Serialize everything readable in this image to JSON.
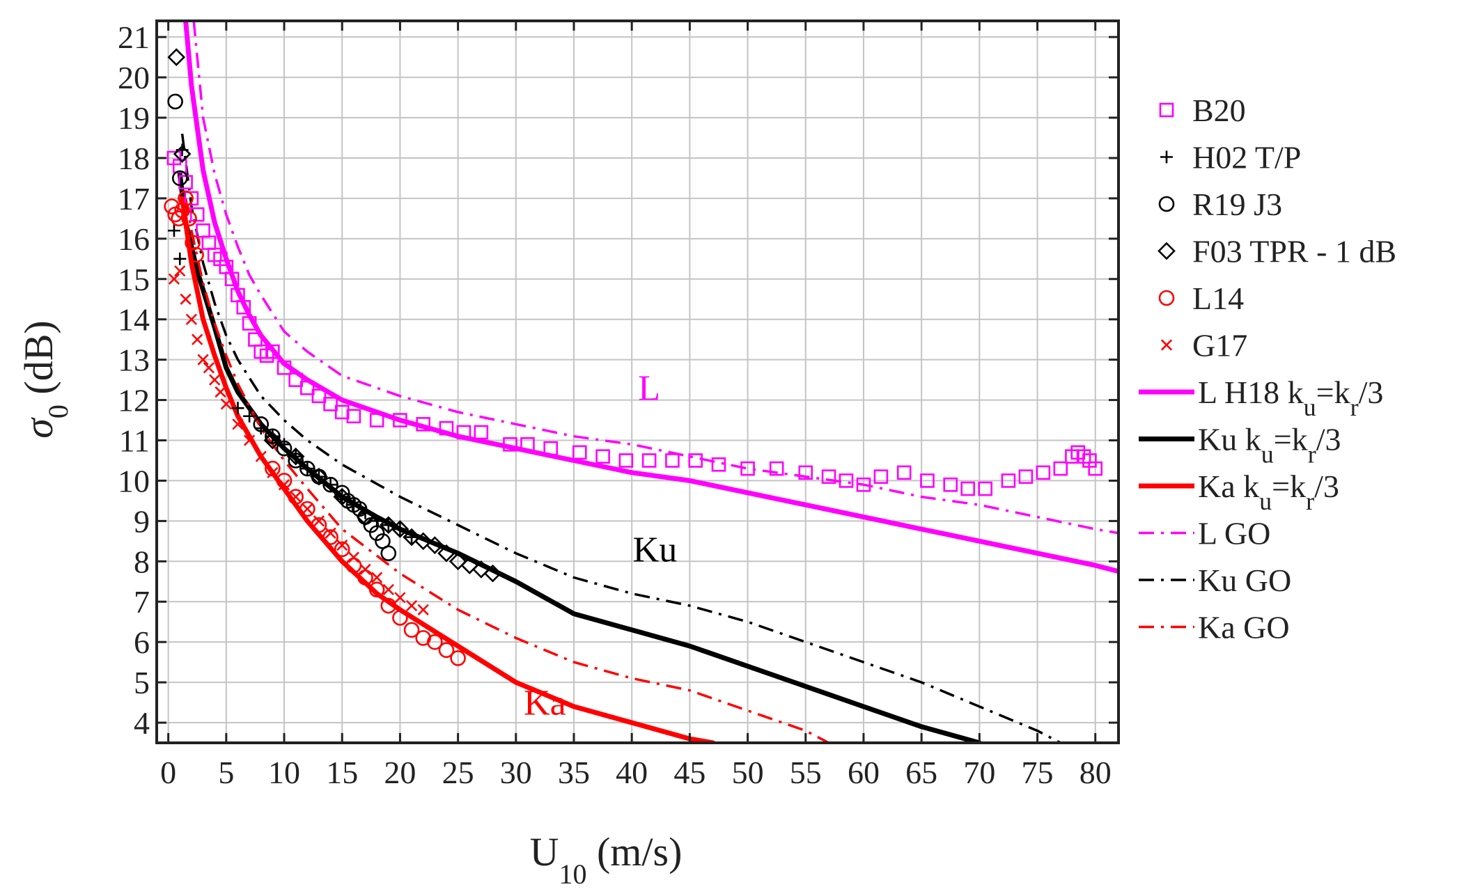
{
  "chart_data": {
    "type": "line",
    "title": "",
    "xlabel": {
      "main": "U",
      "sub": "10",
      "unit": " (m/s)"
    },
    "ylabel": {
      "main": "σ",
      "sub": "0",
      "unit": " (dB)"
    },
    "xlim": [
      -1,
      82
    ],
    "ylim": [
      3.5,
      21.4
    ],
    "xticks": [
      0,
      5,
      10,
      15,
      20,
      25,
      30,
      35,
      40,
      45,
      50,
      55,
      60,
      65,
      70,
      75,
      80
    ],
    "yticks": [
      4,
      5,
      6,
      7,
      8,
      9,
      10,
      11,
      12,
      13,
      14,
      15,
      16,
      17,
      18,
      19,
      20,
      21
    ],
    "grid": true,
    "legend_position": "right",
    "colors": {
      "magenta": "#ff00ff",
      "black": "#000000",
      "red": "#ff0000"
    },
    "annotations": [
      {
        "text": "L",
        "x": 41.5,
        "y": 12.0,
        "color": "#ff00ff"
      },
      {
        "text": "Ku",
        "x": 42.0,
        "y": 8.0,
        "color": "#000000"
      },
      {
        "text": "Ka",
        "x": 32.5,
        "y": 4.2,
        "color": "#ff0000"
      }
    ],
    "series": [
      {
        "id": "B20",
        "legend": {
          "main": "B20"
        },
        "kind": "marker",
        "marker": "square",
        "color": "#ff00ff",
        "x": [
          0.5,
          1.0,
          1.5,
          2.0,
          2.5,
          3.0,
          3.5,
          4.0,
          4.5,
          5.0,
          5.5,
          6.0,
          6.5,
          7.0,
          7.5,
          8.0,
          8.5,
          9.0,
          10.0,
          11.0,
          12.0,
          13.0,
          14.0,
          15.0,
          16.0,
          18.0,
          20.0,
          22.0,
          24.0,
          25.5,
          27.0,
          29.5,
          31.0,
          33.0,
          35.5,
          37.5,
          39.5,
          41.5,
          43.5,
          45.5,
          47.5,
          50.0,
          52.5,
          55.0,
          57.0,
          58.5,
          60.0,
          61.5,
          63.5,
          65.5,
          67.5,
          69.0,
          70.5,
          72.5,
          74.0,
          75.5,
          77.0,
          78.0,
          78.5,
          79.0,
          79.5,
          80.0
        ],
        "y": [
          18.0,
          17.8,
          17.4,
          17.0,
          16.6,
          16.2,
          15.9,
          15.6,
          15.5,
          15.3,
          15.0,
          14.6,
          14.3,
          13.9,
          13.5,
          13.2,
          13.1,
          13.2,
          12.8,
          12.5,
          12.3,
          12.1,
          11.9,
          11.7,
          11.6,
          11.5,
          11.5,
          11.4,
          11.3,
          11.2,
          11.2,
          10.9,
          10.9,
          10.8,
          10.7,
          10.6,
          10.5,
          10.5,
          10.5,
          10.5,
          10.4,
          10.3,
          10.3,
          10.2,
          10.1,
          10.0,
          9.9,
          10.1,
          10.2,
          10.0,
          9.9,
          9.8,
          9.8,
          10.0,
          10.1,
          10.2,
          10.3,
          10.6,
          10.7,
          10.6,
          10.5,
          10.3
        ]
      },
      {
        "id": "H02",
        "legend": {
          "main": "H02 T/P"
        },
        "kind": "marker",
        "marker": "plus",
        "color": "#000000",
        "x": [
          0.5,
          1.0,
          1.2,
          6,
          7,
          8,
          9,
          10,
          11,
          12,
          13,
          14,
          15,
          16,
          17,
          18,
          19,
          20,
          21
        ],
        "y": [
          16.2,
          15.5,
          18.2,
          11.8,
          11.6,
          11.3,
          11.1,
          10.9,
          10.6,
          10.3,
          10.1,
          9.9,
          9.6,
          9.4,
          9.2,
          9.0,
          8.9,
          8.8,
          8.6
        ]
      },
      {
        "id": "R19",
        "legend": {
          "main": "R19 J3"
        },
        "kind": "marker",
        "marker": "circle",
        "color": "#000000",
        "x": [
          0.6,
          1.0,
          8,
          9,
          10,
          11,
          12,
          13,
          14,
          15,
          15.5,
          16,
          16.5,
          17,
          17.5,
          18,
          18.5,
          19
        ],
        "y": [
          19.4,
          17.5,
          11.4,
          11.1,
          10.8,
          10.5,
          10.3,
          10.1,
          9.9,
          9.7,
          9.5,
          9.4,
          9.3,
          9.1,
          8.9,
          8.7,
          8.5,
          8.2
        ]
      },
      {
        "id": "F03",
        "legend": {
          "main": "F03 TPR - 1 dB"
        },
        "kind": "marker",
        "marker": "diamond",
        "color": "#000000",
        "x": [
          0.7,
          1.2,
          9,
          11,
          13,
          15,
          17,
          19,
          20,
          21,
          22,
          23,
          24,
          25,
          26,
          27,
          28
        ],
        "y": [
          20.5,
          18.1,
          11.0,
          10.6,
          10.1,
          9.6,
          9.1,
          8.9,
          8.8,
          8.6,
          8.5,
          8.4,
          8.2,
          8.0,
          7.9,
          7.8,
          7.7
        ]
      },
      {
        "id": "L14",
        "legend": {
          "main": "L14"
        },
        "kind": "marker",
        "marker": "circle",
        "color": "#ff0000",
        "x": [
          0.3,
          0.6,
          0.9,
          1.2,
          1.5,
          1.8,
          2.1,
          2.4,
          9,
          10,
          11,
          12,
          13,
          14,
          15,
          16,
          17,
          18,
          19,
          20,
          21,
          22,
          23,
          24,
          25
        ],
        "y": [
          16.8,
          16.6,
          16.5,
          16.7,
          17.0,
          16.5,
          15.9,
          15.6,
          10.3,
          10.0,
          9.6,
          9.3,
          8.9,
          8.6,
          8.3,
          7.9,
          7.6,
          7.3,
          6.9,
          6.6,
          6.3,
          6.1,
          6.0,
          5.8,
          5.6
        ]
      },
      {
        "id": "G17",
        "legend": {
          "main": "G17"
        },
        "kind": "marker",
        "marker": "cross",
        "color": "#ff0000",
        "x": [
          0.5,
          1.0,
          1.5,
          2.0,
          2.5,
          3.0,
          3.5,
          4.0,
          4.5,
          5.0,
          6,
          7,
          8,
          9,
          10,
          11,
          12,
          13,
          14,
          15,
          16,
          17,
          18,
          19,
          20,
          21,
          22
        ],
        "y": [
          15.0,
          15.2,
          14.5,
          14.0,
          13.5,
          13.0,
          12.8,
          12.5,
          12.2,
          11.9,
          11.4,
          11.0,
          10.6,
          10.2,
          9.9,
          9.6,
          9.3,
          9.0,
          8.7,
          8.4,
          8.1,
          7.8,
          7.6,
          7.3,
          7.1,
          6.9,
          6.8
        ]
      },
      {
        "id": "L_H18",
        "legend": {
          "main": "L H18 k",
          "sub1": "u",
          "mid": "=k",
          "sub2": "r",
          "tail": "/3"
        },
        "kind": "line",
        "dash": "solid",
        "color": "#ff00ff",
        "x": [
          1.5,
          2.0,
          3,
          4,
          5,
          6,
          7,
          8,
          10,
          12,
          15,
          20,
          25,
          30,
          35,
          40,
          45,
          50,
          55,
          60,
          65,
          70,
          75,
          80,
          82
        ],
        "y": [
          21.4,
          19.8,
          17.7,
          16.4,
          15.5,
          14.7,
          14.1,
          13.6,
          12.9,
          12.5,
          12.0,
          11.5,
          11.1,
          10.8,
          10.5,
          10.2,
          10.0,
          9.7,
          9.4,
          9.1,
          8.8,
          8.5,
          8.2,
          7.9,
          7.75
        ]
      },
      {
        "id": "Ku_H18",
        "legend": {
          "main": "Ku k",
          "sub1": "u",
          "mid": "=k",
          "sub2": "r",
          "tail": "/3"
        },
        "kind": "line",
        "dash": "solid",
        "color": "#000000",
        "x": [
          1.0,
          1.5,
          2.5,
          4,
          5,
          6,
          8,
          10,
          12,
          15,
          18,
          20,
          25,
          30,
          35,
          40,
          45,
          50,
          55,
          60,
          65,
          70
        ],
        "y": [
          17.6,
          16.4,
          15.2,
          13.8,
          12.8,
          12.2,
          11.4,
          10.8,
          10.3,
          9.6,
          9.1,
          8.8,
          8.2,
          7.5,
          6.7,
          6.3,
          5.9,
          5.4,
          4.9,
          4.4,
          3.9,
          3.5
        ]
      },
      {
        "id": "Ka_H18",
        "legend": {
          "main": "Ka k",
          "sub1": "u",
          "mid": "=k",
          "sub2": "r",
          "tail": "/3"
        },
        "kind": "line",
        "dash": "solid",
        "color": "#ff0000",
        "x": [
          1.2,
          2,
          3,
          4,
          5,
          6,
          8,
          10,
          12,
          15,
          18,
          20,
          25,
          30,
          35,
          40,
          45,
          47
        ],
        "y": [
          17.0,
          15.4,
          14.0,
          13.1,
          12.3,
          11.6,
          10.6,
          9.8,
          9.0,
          8.0,
          7.2,
          6.8,
          5.9,
          5.0,
          4.4,
          4.0,
          3.6,
          3.5
        ]
      },
      {
        "id": "L_GO",
        "legend": {
          "main": "L GO"
        },
        "kind": "line",
        "dash": "dashdot",
        "color": "#ff00ff",
        "x": [
          2.2,
          3,
          4,
          5,
          6,
          7,
          8,
          10,
          12,
          15,
          20,
          25,
          30,
          35,
          40,
          45,
          50,
          55,
          60,
          65,
          70,
          75,
          80,
          82
        ],
        "y": [
          21.4,
          19.0,
          17.6,
          16.6,
          15.8,
          15.1,
          14.6,
          13.7,
          13.2,
          12.6,
          12.1,
          11.7,
          11.4,
          11.1,
          10.9,
          10.6,
          10.3,
          10.1,
          9.9,
          9.6,
          9.4,
          9.1,
          8.8,
          8.7
        ]
      },
      {
        "id": "Ku_GO",
        "legend": {
          "main": "Ku GO"
        },
        "kind": "line",
        "dash": "dashdot",
        "color": "#000000",
        "x": [
          1.2,
          2,
          3,
          4,
          5,
          6,
          8,
          10,
          12,
          15,
          20,
          25,
          30,
          35,
          40,
          45,
          50,
          55,
          60,
          65,
          70,
          75,
          77
        ],
        "y": [
          18.6,
          16.8,
          15.4,
          14.4,
          13.6,
          13.0,
          12.1,
          11.5,
          11.0,
          10.4,
          9.6,
          8.9,
          8.2,
          7.6,
          7.2,
          6.9,
          6.5,
          6.0,
          5.5,
          5.0,
          4.4,
          3.8,
          3.5
        ]
      },
      {
        "id": "Ka_GO",
        "legend": {
          "main": "Ka GO"
        },
        "kind": "line",
        "dash": "dashdot",
        "color": "#ff0000",
        "x": [
          1.5,
          2,
          3,
          4,
          5,
          6,
          8,
          10,
          12,
          15,
          20,
          25,
          30,
          35,
          40,
          45,
          50,
          55,
          57
        ],
        "y": [
          17.0,
          16.2,
          14.9,
          13.9,
          13.1,
          12.4,
          11.3,
          10.5,
          9.8,
          8.8,
          7.7,
          6.8,
          6.1,
          5.5,
          5.1,
          4.8,
          4.3,
          3.8,
          3.5
        ]
      }
    ]
  }
}
